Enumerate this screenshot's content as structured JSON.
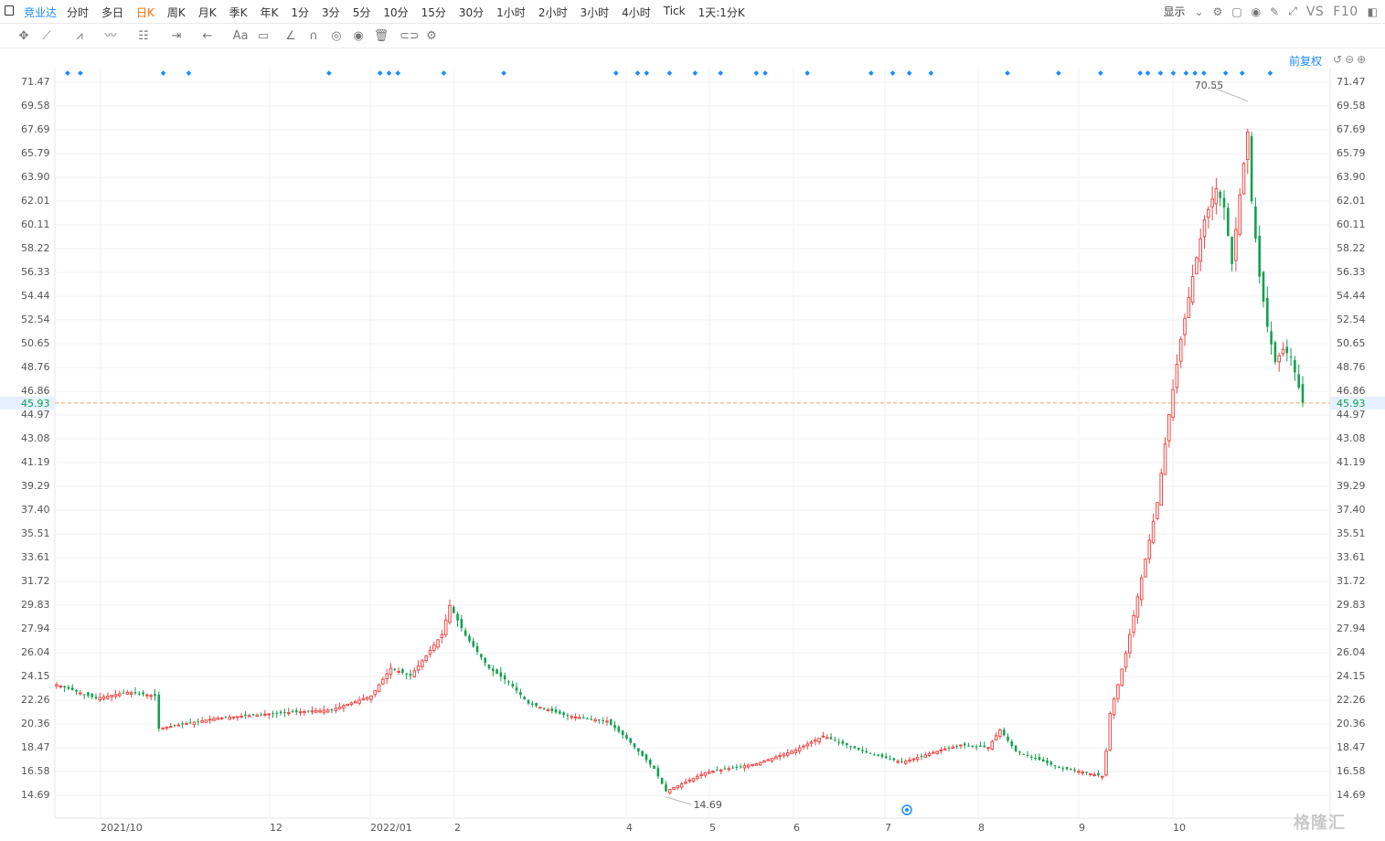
{
  "toolbar": {
    "symbol": "竞业达",
    "periods": [
      "分时",
      "多日",
      "日K",
      "周K",
      "月K",
      "季K",
      "年K",
      "1分",
      "3分",
      "5分",
      "10分",
      "15分",
      "30分",
      "1小时",
      "2小时",
      "3小时",
      "4小时",
      "Tick",
      "1天:1分K"
    ],
    "active_period": "日K",
    "display_label": "显示",
    "vs_label": "VS",
    "f10_label": "F10"
  },
  "adjust_label": "前复权",
  "y_axis": {
    "ticks": [
      "71.47",
      "69.58",
      "67.69",
      "65.79",
      "63.90",
      "62.01",
      "60.11",
      "58.22",
      "56.33",
      "54.44",
      "52.54",
      "50.65",
      "48.76",
      "46.86",
      "44.97",
      "43.08",
      "41.19",
      "39.29",
      "37.40",
      "35.51",
      "33.61",
      "31.72",
      "29.83",
      "27.94",
      "26.04",
      "24.15",
      "22.26",
      "20.36",
      "18.47",
      "16.58",
      "14.69"
    ],
    "current_price": "45.93"
  },
  "x_axis": {
    "labels": [
      "2021/10",
      "12",
      "2022/01",
      "2",
      "4",
      "5",
      "6",
      "7",
      "8",
      "9",
      "10"
    ]
  },
  "annotations": {
    "high": "70.55",
    "low": "14.69"
  },
  "watermark": "格隆汇",
  "colors": {
    "up": "#f04848",
    "down": "#12a050",
    "accent": "#1a8cff",
    "active": "#ff6a00",
    "price_line": "#f5a060"
  },
  "chart_data": {
    "type": "candlestick",
    "title": "",
    "ylim": [
      14.69,
      71.47
    ],
    "high_marker": 70.55,
    "low_marker": 14.69,
    "current_price": 45.93,
    "close_anchors": [
      [
        0,
        23.5
      ],
      [
        10,
        22.4
      ],
      [
        18,
        22.9
      ],
      [
        25,
        22.6
      ],
      [
        26,
        20.0
      ],
      [
        40,
        20.8
      ],
      [
        55,
        21.2
      ],
      [
        70,
        21.5
      ],
      [
        80,
        22.6
      ],
      [
        85,
        24.8
      ],
      [
        90,
        24.2
      ],
      [
        94,
        25.8
      ],
      [
        98,
        27.5
      ],
      [
        100,
        29.8
      ],
      [
        104,
        27.4
      ],
      [
        110,
        24.8
      ],
      [
        115,
        23.7
      ],
      [
        120,
        22.0
      ],
      [
        130,
        21.0
      ],
      [
        140,
        20.6
      ],
      [
        145,
        19.2
      ],
      [
        152,
        16.8
      ],
      [
        155,
        15.0
      ],
      [
        165,
        16.5
      ],
      [
        178,
        17.2
      ],
      [
        188,
        18.3
      ],
      [
        195,
        19.4
      ],
      [
        205,
        18.2
      ],
      [
        215,
        17.3
      ],
      [
        225,
        18.3
      ],
      [
        230,
        18.7
      ],
      [
        237,
        18.5
      ],
      [
        240,
        19.9
      ],
      [
        244,
        18.2
      ],
      [
        255,
        16.9
      ],
      [
        260,
        16.6
      ],
      [
        266,
        16.2
      ],
      [
        267,
        18.2
      ],
      [
        268,
        21.2
      ],
      [
        270,
        23.5
      ],
      [
        272,
        26.0
      ],
      [
        274,
        29.0
      ],
      [
        277,
        33.5
      ],
      [
        280,
        38.0
      ],
      [
        283,
        45.0
      ],
      [
        286,
        51.0
      ],
      [
        289,
        56.0
      ],
      [
        292,
        60.5
      ],
      [
        295,
        63.0
      ],
      [
        297,
        61.5
      ],
      [
        299,
        57.0
      ],
      [
        301,
        62.5
      ],
      [
        303,
        67.5
      ],
      [
        304,
        62.0
      ],
      [
        306,
        56.0
      ],
      [
        308,
        52.0
      ],
      [
        310,
        49.2
      ],
      [
        312,
        50.2
      ],
      [
        314,
        49.6
      ],
      [
        317,
        45.93
      ]
    ],
    "event_markers_x": [
      0.01,
      0.02,
      0.085,
      0.105,
      0.215,
      0.255,
      0.262,
      0.269,
      0.305,
      0.352,
      0.44,
      0.457,
      0.464,
      0.482,
      0.502,
      0.522,
      0.55,
      0.557,
      0.59,
      0.64,
      0.657,
      0.67,
      0.687,
      0.747,
      0.787,
      0.82,
      0.851,
      0.857,
      0.867,
      0.877,
      0.887,
      0.894,
      0.901,
      0.918,
      0.931,
      0.953
    ]
  }
}
